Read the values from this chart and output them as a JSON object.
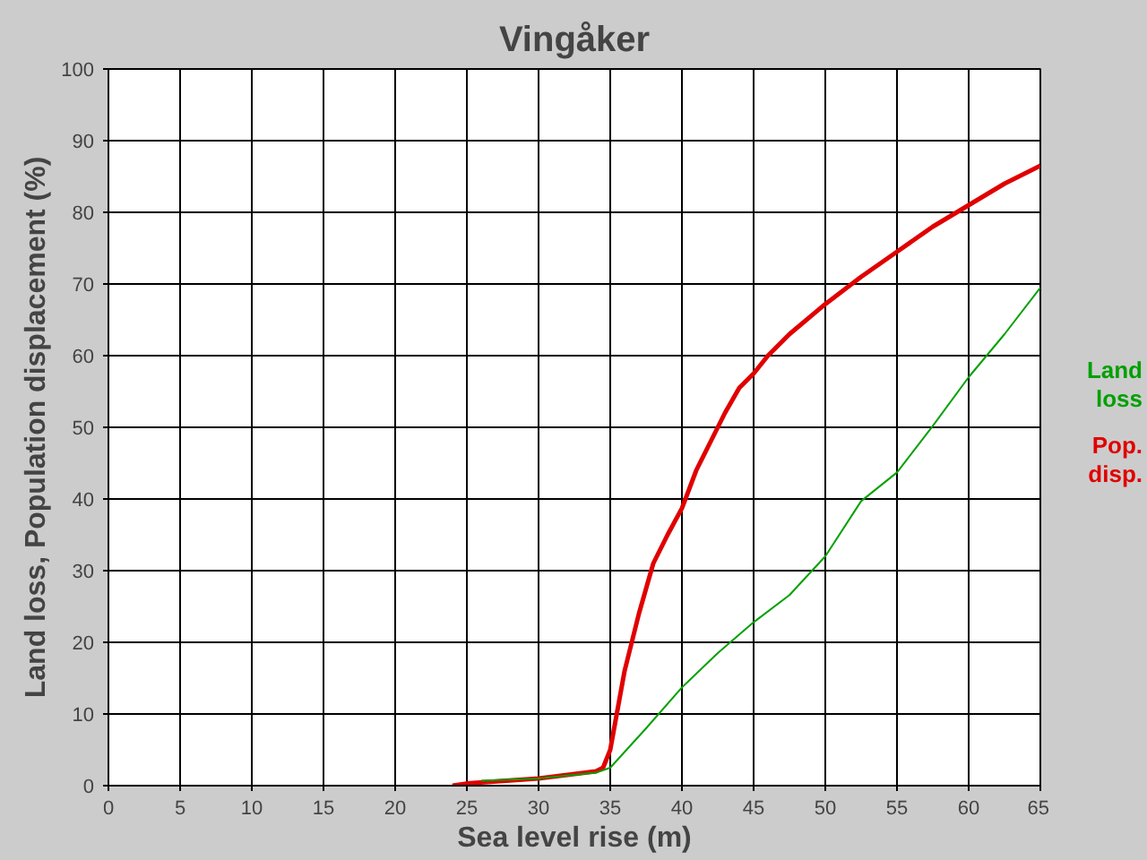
{
  "chart_data": {
    "type": "line",
    "title": "Vingåker",
    "xlabel": "Sea level rise (m)",
    "ylabel": "Land loss, Population displacement (%)",
    "xlim": [
      0,
      65
    ],
    "ylim": [
      0,
      100
    ],
    "xticks": [
      0,
      5,
      10,
      15,
      20,
      25,
      30,
      35,
      40,
      45,
      50,
      55,
      60,
      65
    ],
    "yticks": [
      0,
      10,
      20,
      30,
      40,
      50,
      60,
      70,
      80,
      90,
      100
    ],
    "grid": true,
    "marker": "none",
    "line_style": "solid",
    "series": [
      {
        "name": "Land loss",
        "color": "#00a000",
        "x": [
          26,
          30,
          34,
          35,
          37.5,
          40,
          42.5,
          45,
          47.5,
          50,
          52.5,
          55,
          57.5,
          60,
          62.5,
          65
        ],
        "values": [
          0.7,
          1,
          1.8,
          2.5,
          8,
          13.7,
          18.5,
          22.8,
          26.6,
          32,
          39.7,
          43.7,
          50.2,
          57,
          63,
          69.5
        ]
      },
      {
        "name": "Pop. disp.",
        "color": "#e00000",
        "x": [
          24,
          25,
          30,
          34,
          34.5,
          35,
          36,
          37,
          38,
          39,
          40,
          41,
          42,
          43,
          44,
          45,
          46,
          47.5,
          50,
          52.5,
          55,
          57.5,
          60,
          62.5,
          65
        ],
        "values": [
          0,
          0.3,
          1,
          2,
          2.5,
          5,
          16,
          24,
          31,
          35,
          38.7,
          44,
          48,
          52,
          55.5,
          57.5,
          60,
          63,
          67.2,
          71,
          74.5,
          78,
          81,
          84,
          86.5
        ]
      }
    ]
  }
}
